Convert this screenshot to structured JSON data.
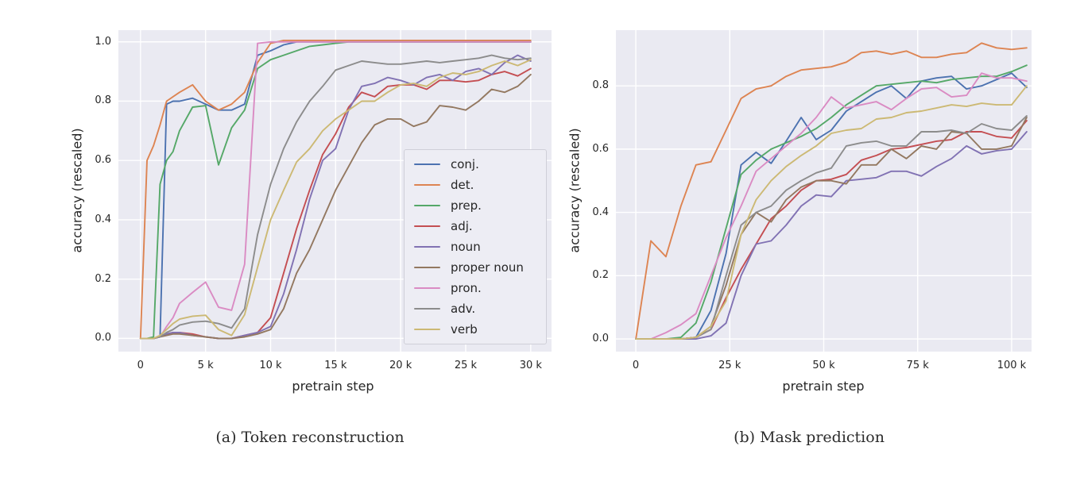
{
  "figure": {
    "background": "#ffffff",
    "plot_background": "#eaeaf2",
    "grid_color": "#ffffff",
    "text_color": "#262626"
  },
  "chart_data": [
    {
      "id": "token-reconstruction",
      "type": "line",
      "caption": "(a) Token reconstruction",
      "xlabel": "pretrain step",
      "ylabel": "accuracy (rescaled)",
      "grid": true,
      "legend_position": "center-right",
      "show_legend": true,
      "xlim": [
        -1700,
        31600
      ],
      "ylim": [
        -0.0445,
        1.0395
      ],
      "x_ticks": {
        "values": [
          0,
          5000,
          10000,
          15000,
          20000,
          25000,
          30000
        ],
        "labels": [
          "0",
          "5 k",
          "10 k",
          "15 k",
          "20 k",
          "25 k",
          "30 k"
        ]
      },
      "y_ticks": {
        "values": [
          0.0,
          0.2,
          0.4,
          0.6,
          0.8,
          1.0
        ],
        "labels": [
          "0.0",
          "0.2",
          "0.4",
          "0.6",
          "0.8",
          "1.0"
        ]
      },
      "x": [
        0,
        500,
        1000,
        1500,
        2000,
        2500,
        3000,
        4000,
        5000,
        6000,
        7000,
        8000,
        9000,
        10000,
        11000,
        12000,
        13000,
        14000,
        15000,
        16000,
        17000,
        18000,
        19000,
        20000,
        21000,
        22000,
        23000,
        24000,
        25000,
        26000,
        27000,
        28000,
        29000,
        30000
      ],
      "series": [
        {
          "name": "conj.",
          "color": "#4c72b0",
          "values": [
            0,
            0,
            0,
            0.005,
            0.79,
            0.8,
            0.8,
            0.81,
            0.79,
            0.77,
            0.77,
            0.79,
            0.955,
            0.97,
            0.99,
            1,
            1,
            1,
            1,
            1,
            1,
            1,
            1,
            1,
            1,
            1,
            1,
            1,
            1,
            1,
            1,
            1,
            1,
            1
          ]
        },
        {
          "name": "det.",
          "color": "#dd8452",
          "values": [
            0,
            0.6,
            0.65,
            0.72,
            0.8,
            0.815,
            0.83,
            0.855,
            0.8,
            0.77,
            0.79,
            0.83,
            0.93,
            0.995,
            1.005,
            1.005,
            1.005,
            1.005,
            1.005,
            1.005,
            1.005,
            1.005,
            1.005,
            1.005,
            1.005,
            1.005,
            1.005,
            1.005,
            1.005,
            1.005,
            1.005,
            1.005,
            1.005,
            1.005
          ]
        },
        {
          "name": "prep.",
          "color": "#55a868",
          "values": [
            0,
            0,
            0.005,
            0.52,
            0.6,
            0.63,
            0.7,
            0.78,
            0.785,
            0.585,
            0.71,
            0.77,
            0.91,
            0.94,
            0.955,
            0.97,
            0.985,
            0.99,
            0.995,
            1,
            1,
            1,
            1,
            1,
            1,
            1,
            1,
            1,
            1,
            1,
            1,
            1,
            1,
            1
          ]
        },
        {
          "name": "adj.",
          "color": "#c44e52",
          "values": [
            0,
            0,
            0,
            0.005,
            0.015,
            0.02,
            0.02,
            0.015,
            0.005,
            0,
            0,
            0.01,
            0.02,
            0.07,
            0.22,
            0.37,
            0.5,
            0.62,
            0.69,
            0.78,
            0.83,
            0.815,
            0.85,
            0.855,
            0.855,
            0.84,
            0.87,
            0.87,
            0.865,
            0.87,
            0.89,
            0.9,
            0.885,
            0.91
          ]
        },
        {
          "name": "noun",
          "color": "#8172b3",
          "values": [
            0,
            0,
            0,
            0.005,
            0.015,
            0.02,
            0.02,
            0.01,
            0.005,
            0,
            0,
            0.01,
            0.02,
            0.04,
            0.15,
            0.3,
            0.47,
            0.6,
            0.64,
            0.77,
            0.85,
            0.86,
            0.88,
            0.87,
            0.855,
            0.88,
            0.89,
            0.87,
            0.9,
            0.91,
            0.89,
            0.93,
            0.955,
            0.935
          ]
        },
        {
          "name": "proper noun",
          "color": "#937860",
          "values": [
            0,
            0,
            0,
            0.005,
            0.01,
            0.015,
            0.015,
            0.01,
            0.005,
            0,
            0,
            0.005,
            0.015,
            0.03,
            0.1,
            0.22,
            0.3,
            0.4,
            0.5,
            0.58,
            0.66,
            0.72,
            0.74,
            0.74,
            0.715,
            0.73,
            0.785,
            0.78,
            0.77,
            0.8,
            0.84,
            0.83,
            0.85,
            0.89
          ]
        },
        {
          "name": "pron.",
          "color": "#da8bc3",
          "values": [
            0,
            0,
            0,
            0.005,
            0.04,
            0.07,
            0.118,
            0.155,
            0.19,
            0.105,
            0.095,
            0.25,
            0.995,
            1,
            1,
            1,
            1,
            1,
            1,
            1,
            1,
            1,
            1,
            1,
            1,
            1,
            1,
            1,
            1,
            1,
            1,
            1,
            1,
            1
          ]
        },
        {
          "name": "adv.",
          "color": "#8c8c8c",
          "values": [
            0,
            0,
            0,
            0.005,
            0.02,
            0.03,
            0.045,
            0.055,
            0.058,
            0.05,
            0.035,
            0.1,
            0.35,
            0.52,
            0.64,
            0.73,
            0.8,
            0.85,
            0.905,
            0.92,
            0.935,
            0.93,
            0.925,
            0.925,
            0.93,
            0.935,
            0.93,
            0.935,
            0.94,
            0.945,
            0.955,
            0.945,
            0.94,
            0.945
          ]
        },
        {
          "name": "verb",
          "color": "#ccb974",
          "values": [
            0,
            0,
            0,
            0.01,
            0.03,
            0.05,
            0.065,
            0.075,
            0.078,
            0.03,
            0.01,
            0.08,
            0.24,
            0.4,
            0.5,
            0.595,
            0.64,
            0.7,
            0.74,
            0.77,
            0.8,
            0.8,
            0.83,
            0.855,
            0.86,
            0.85,
            0.88,
            0.895,
            0.89,
            0.9,
            0.92,
            0.935,
            0.92,
            0.94
          ]
        }
      ]
    },
    {
      "id": "mask-prediction",
      "type": "line",
      "caption": "(b) Mask prediction",
      "xlabel": "pretrain step",
      "ylabel": "accuracy (rescaled)",
      "grid": true,
      "show_legend": false,
      "xlim": [
        -5300,
        105300
      ],
      "ylim": [
        -0.04,
        0.976
      ],
      "x_ticks": {
        "values": [
          0,
          25000,
          50000,
          75000,
          100000
        ],
        "labels": [
          "0",
          "25 k",
          "50 k",
          "75 k",
          "100 k"
        ]
      },
      "y_ticks": {
        "values": [
          0.0,
          0.2,
          0.4,
          0.6,
          0.8
        ],
        "labels": [
          "0.0",
          "0.2",
          "0.4",
          "0.6",
          "0.8"
        ]
      },
      "x": [
        0,
        4000,
        8000,
        12000,
        16000,
        20000,
        24000,
        28000,
        32000,
        36000,
        40000,
        44000,
        48000,
        52000,
        56000,
        60000,
        64000,
        68000,
        72000,
        76000,
        80000,
        84000,
        88000,
        92000,
        96000,
        100000,
        104000
      ],
      "series": [
        {
          "name": "conj.",
          "color": "#4c72b0",
          "values": [
            0,
            0,
            0,
            0,
            0.005,
            0.09,
            0.27,
            0.55,
            0.59,
            0.555,
            0.625,
            0.7,
            0.63,
            0.66,
            0.72,
            0.75,
            0.78,
            0.8,
            0.76,
            0.815,
            0.825,
            0.83,
            0.79,
            0.8,
            0.82,
            0.84,
            0.795
          ]
        },
        {
          "name": "det.",
          "color": "#dd8452",
          "values": [
            0,
            0.31,
            0.26,
            0.42,
            0.55,
            0.56,
            0.66,
            0.76,
            0.79,
            0.8,
            0.83,
            0.85,
            0.855,
            0.86,
            0.875,
            0.905,
            0.91,
            0.9,
            0.91,
            0.89,
            0.89,
            0.9,
            0.905,
            0.935,
            0.92,
            0.915,
            0.92
          ]
        },
        {
          "name": "prep.",
          "color": "#55a868",
          "values": [
            0,
            0,
            0,
            0.005,
            0.05,
            0.18,
            0.35,
            0.52,
            0.565,
            0.6,
            0.62,
            0.64,
            0.665,
            0.7,
            0.74,
            0.77,
            0.8,
            0.805,
            0.81,
            0.815,
            0.81,
            0.82,
            0.825,
            0.83,
            0.83,
            0.845,
            0.865
          ]
        },
        {
          "name": "adj.",
          "color": "#c44e52",
          "values": [
            0,
            0,
            0,
            0,
            0.005,
            0.03,
            0.13,
            0.22,
            0.3,
            0.38,
            0.42,
            0.47,
            0.5,
            0.505,
            0.52,
            0.565,
            0.58,
            0.6,
            0.605,
            0.615,
            0.625,
            0.63,
            0.655,
            0.655,
            0.64,
            0.635,
            0.69
          ]
        },
        {
          "name": "noun",
          "color": "#8172b3",
          "values": [
            0,
            0,
            0,
            0,
            0,
            0.01,
            0.05,
            0.2,
            0.3,
            0.31,
            0.36,
            0.42,
            0.455,
            0.45,
            0.5,
            0.505,
            0.51,
            0.53,
            0.53,
            0.515,
            0.545,
            0.57,
            0.61,
            0.585,
            0.595,
            0.6,
            0.655
          ]
        },
        {
          "name": "proper noun",
          "color": "#937860",
          "values": [
            0,
            0,
            0,
            0,
            0.005,
            0.04,
            0.17,
            0.33,
            0.4,
            0.37,
            0.44,
            0.48,
            0.5,
            0.5,
            0.49,
            0.55,
            0.55,
            0.6,
            0.57,
            0.61,
            0.6,
            0.655,
            0.65,
            0.6,
            0.6,
            0.61,
            0.7
          ]
        },
        {
          "name": "pron.",
          "color": "#da8bc3",
          "values": [
            0,
            0,
            0.02,
            0.045,
            0.08,
            0.2,
            0.32,
            0.42,
            0.53,
            0.57,
            0.61,
            0.65,
            0.7,
            0.765,
            0.73,
            0.74,
            0.75,
            0.725,
            0.76,
            0.79,
            0.795,
            0.765,
            0.77,
            0.84,
            0.825,
            0.825,
            0.815
          ]
        },
        {
          "name": "adv.",
          "color": "#8c8c8c",
          "values": [
            0,
            0,
            0,
            0,
            0.005,
            0.03,
            0.2,
            0.36,
            0.4,
            0.42,
            0.47,
            0.5,
            0.525,
            0.54,
            0.61,
            0.62,
            0.625,
            0.61,
            0.61,
            0.655,
            0.655,
            0.66,
            0.65,
            0.68,
            0.665,
            0.66,
            0.705
          ]
        },
        {
          "name": "verb",
          "color": "#ccb974",
          "values": [
            0,
            0,
            0,
            0,
            0.005,
            0.04,
            0.12,
            0.33,
            0.44,
            0.5,
            0.545,
            0.58,
            0.61,
            0.65,
            0.66,
            0.665,
            0.695,
            0.7,
            0.715,
            0.72,
            0.73,
            0.74,
            0.735,
            0.745,
            0.74,
            0.74,
            0.8
          ]
        }
      ]
    }
  ]
}
